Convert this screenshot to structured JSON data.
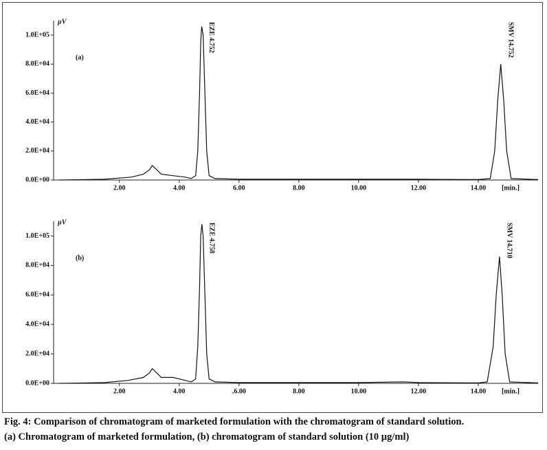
{
  "chart_data": [
    {
      "type": "line",
      "panel_label": "(a)",
      "y_unit": "µV",
      "xlabel": "[min.]",
      "color": "#111111",
      "x": [
        0.0,
        1.5,
        2.4,
        2.8,
        3.0,
        3.1,
        3.2,
        3.4,
        3.8,
        4.2,
        4.4,
        4.55,
        4.62,
        4.68,
        4.72,
        4.752,
        4.8,
        4.86,
        4.92,
        5.0,
        5.2,
        6,
        8,
        10,
        12,
        14,
        14.4,
        14.55,
        14.65,
        14.752,
        14.85,
        14.95,
        15.1,
        16
      ],
      "values": [
        0,
        500,
        2000,
        4000,
        7000,
        10000,
        8000,
        4000,
        3000,
        2000,
        1000,
        3000,
        20000,
        60000,
        95000,
        106000,
        100000,
        60000,
        20000,
        3000,
        1000,
        500,
        500,
        500,
        500,
        300,
        1000,
        20000,
        55000,
        80000,
        55000,
        20000,
        1000,
        300
      ],
      "annotations": [
        {
          "text": "EZE 4.752",
          "x": 4.752
        },
        {
          "text": "SMV 14.752",
          "x": 14.752
        }
      ],
      "xlim": [
        -0.2,
        16
      ],
      "ylim": [
        0,
        110000
      ],
      "xticks": [
        {
          "value": 2,
          "label": "2.00"
        },
        {
          "value": 4,
          "label": "4.00"
        },
        {
          "value": 6,
          "label": "6.00"
        },
        {
          "value": 8,
          "label": "8.00"
        },
        {
          "value": 10,
          "label": "10.00"
        },
        {
          "value": 12,
          "label": "12.00"
        },
        {
          "value": 14,
          "label": "14.00"
        }
      ],
      "yticks": [
        {
          "value": 0,
          "label": "0.0E+00"
        },
        {
          "value": 20000,
          "label": "2.0E+04"
        },
        {
          "value": 40000,
          "label": "4.0E+04"
        },
        {
          "value": 60000,
          "label": "6.0E+04"
        },
        {
          "value": 80000,
          "label": "8.0E+04"
        },
        {
          "value": 100000,
          "label": "1.0E+05"
        }
      ]
    },
    {
      "type": "line",
      "panel_label": "(b)",
      "y_unit": "µV",
      "xlabel": "[min.]",
      "color": "#111111",
      "x": [
        0.0,
        1.5,
        2.3,
        2.8,
        3.0,
        3.1,
        3.2,
        3.4,
        3.8,
        4.2,
        4.4,
        4.55,
        4.62,
        4.68,
        4.72,
        4.758,
        4.8,
        4.86,
        4.92,
        5.0,
        5.2,
        6,
        8,
        10,
        11.5,
        12,
        14,
        14.3,
        14.5,
        14.6,
        14.71,
        14.8,
        14.9,
        15.05,
        16
      ],
      "values": [
        0,
        500,
        2000,
        4000,
        7000,
        10000,
        8000,
        4000,
        4000,
        2000,
        1000,
        3000,
        25000,
        65000,
        100000,
        108000,
        100000,
        60000,
        20000,
        3000,
        1000,
        500,
        500,
        500,
        1000,
        500,
        300,
        1000,
        25000,
        60000,
        86000,
        60000,
        20000,
        1000,
        300
      ],
      "annotations": [
        {
          "text": "EZE 4.758",
          "x": 4.758
        },
        {
          "text": "SMV 14.710",
          "x": 14.71
        }
      ],
      "xlim": [
        -0.2,
        16
      ],
      "ylim": [
        0,
        110000
      ],
      "xticks": [
        {
          "value": 2,
          "label": "2.00"
        },
        {
          "value": 4,
          "label": "4.00"
        },
        {
          "value": 6,
          "label": ".6.00"
        },
        {
          "value": 8,
          "label": "8.00"
        },
        {
          "value": 10,
          "label": "10.00"
        },
        {
          "value": 12,
          "label": "12.00"
        },
        {
          "value": 14,
          "label": "14.00"
        }
      ],
      "yticks": [
        {
          "value": 0,
          "label": "0.0E+00"
        },
        {
          "value": 20000,
          "label": "2.0E+04"
        },
        {
          "value": 40000,
          "label": "4.0E+04"
        },
        {
          "value": 60000,
          "label": "6.0E+04"
        },
        {
          "value": 80000,
          "label": "8.0E+04"
        },
        {
          "value": 100000,
          "label": "1.0E+05"
        }
      ]
    }
  ],
  "caption": {
    "title": "Fig. 4: Comparison of chromatogram of marketed formulation with the chromatogram of standard solution.",
    "text": "(a) Chromatogram of marketed formulation, (b) chromatogram of standard solution (10 µg/ml)"
  }
}
